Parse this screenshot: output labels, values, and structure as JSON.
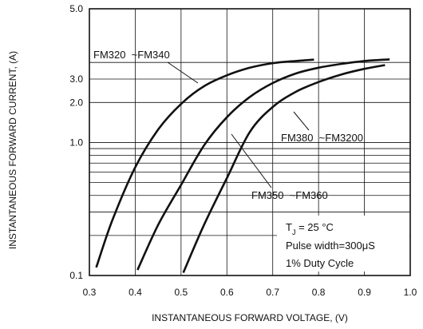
{
  "chart_data": {
    "type": "line",
    "xlabel": "INSTANTANEOUS FORWARD VOLTAGE, (V)",
    "ylabel": "INSTANTANEOUS FORWARD CURRENT, (A)",
    "xlim": [
      0.3,
      1.0
    ],
    "ylim": [
      0.1,
      5.0
    ],
    "y_scale": "log",
    "grid": true,
    "x_ticks": [
      "0.3",
      "0.4",
      "0.5",
      "0.6",
      "0.7",
      "0.8",
      "0.9",
      "1.0"
    ],
    "y_ticks": [
      "0.1",
      "1.0",
      "2.0",
      "3.0",
      "5.0"
    ],
    "series": [
      {
        "name": "FM320 ~FM340",
        "points": [
          [
            0.315,
            0.115
          ],
          [
            0.35,
            0.26
          ],
          [
            0.4,
            0.65
          ],
          [
            0.45,
            1.25
          ],
          [
            0.5,
            1.95
          ],
          [
            0.55,
            2.65
          ],
          [
            0.6,
            3.2
          ],
          [
            0.65,
            3.65
          ],
          [
            0.7,
            3.95
          ],
          [
            0.75,
            4.1
          ],
          [
            0.79,
            4.2
          ]
        ]
      },
      {
        "name": "FM350 ~FM360",
        "points": [
          [
            0.405,
            0.11
          ],
          [
            0.45,
            0.24
          ],
          [
            0.5,
            0.48
          ],
          [
            0.55,
            0.95
          ],
          [
            0.6,
            1.55
          ],
          [
            0.65,
            2.2
          ],
          [
            0.7,
            2.8
          ],
          [
            0.75,
            3.3
          ],
          [
            0.8,
            3.65
          ],
          [
            0.85,
            3.9
          ],
          [
            0.9,
            4.1
          ],
          [
            0.955,
            4.22
          ]
        ]
      },
      {
        "name": "FM380 ~FM3200",
        "points": [
          [
            0.505,
            0.105
          ],
          [
            0.55,
            0.24
          ],
          [
            0.6,
            0.54
          ],
          [
            0.65,
            1.2
          ],
          [
            0.7,
            1.85
          ],
          [
            0.75,
            2.4
          ],
          [
            0.8,
            2.85
          ],
          [
            0.85,
            3.25
          ],
          [
            0.9,
            3.58
          ],
          [
            0.945,
            3.82
          ]
        ]
      }
    ],
    "annotations": {
      "fm320": "FM320  ~FM340",
      "fm350": "FM350  ~FM360",
      "fm380": "FM380  ~FM3200",
      "conditions": [
        "T",
        "J",
        " = 25 °C",
        "Pulse width=300μS",
        "1% Duty Cycle"
      ]
    }
  }
}
